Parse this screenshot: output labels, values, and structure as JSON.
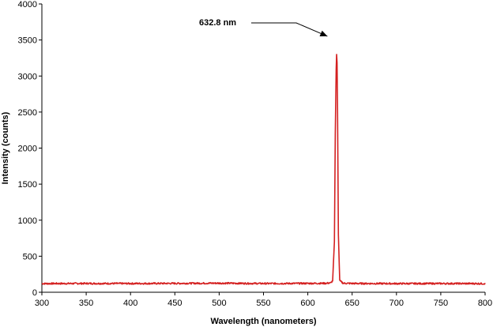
{
  "chart_data": {
    "type": "line",
    "title": "",
    "xlabel": "Wavelength (nanometers)",
    "ylabel": "Intensity (counts)",
    "xlim": [
      300,
      800
    ],
    "ylim": [
      0,
      4000
    ],
    "xticks": [
      300,
      350,
      400,
      450,
      500,
      550,
      600,
      650,
      700,
      750,
      800
    ],
    "yticks": [
      0,
      500,
      1000,
      1500,
      2000,
      2500,
      3000,
      3500,
      4000
    ],
    "grid": false,
    "legend": "none",
    "series": [
      {
        "color": "#d42020",
        "x": [
          300,
          350,
          400,
          450,
          500,
          550,
          600,
          620,
          626,
          628,
          630,
          631,
          632,
          632.8,
          633.5,
          634.5,
          636,
          640,
          650,
          700,
          750,
          800
        ],
        "y": [
          120,
          122,
          121,
          123,
          126,
          121,
          123,
          124,
          130,
          160,
          700,
          2200,
          3100,
          3420,
          2600,
          800,
          160,
          125,
          122,
          120,
          121,
          120
        ]
      }
    ],
    "annotations": [
      {
        "text": "632.8 nm",
        "x": 632.8,
        "y": 3420
      }
    ]
  }
}
